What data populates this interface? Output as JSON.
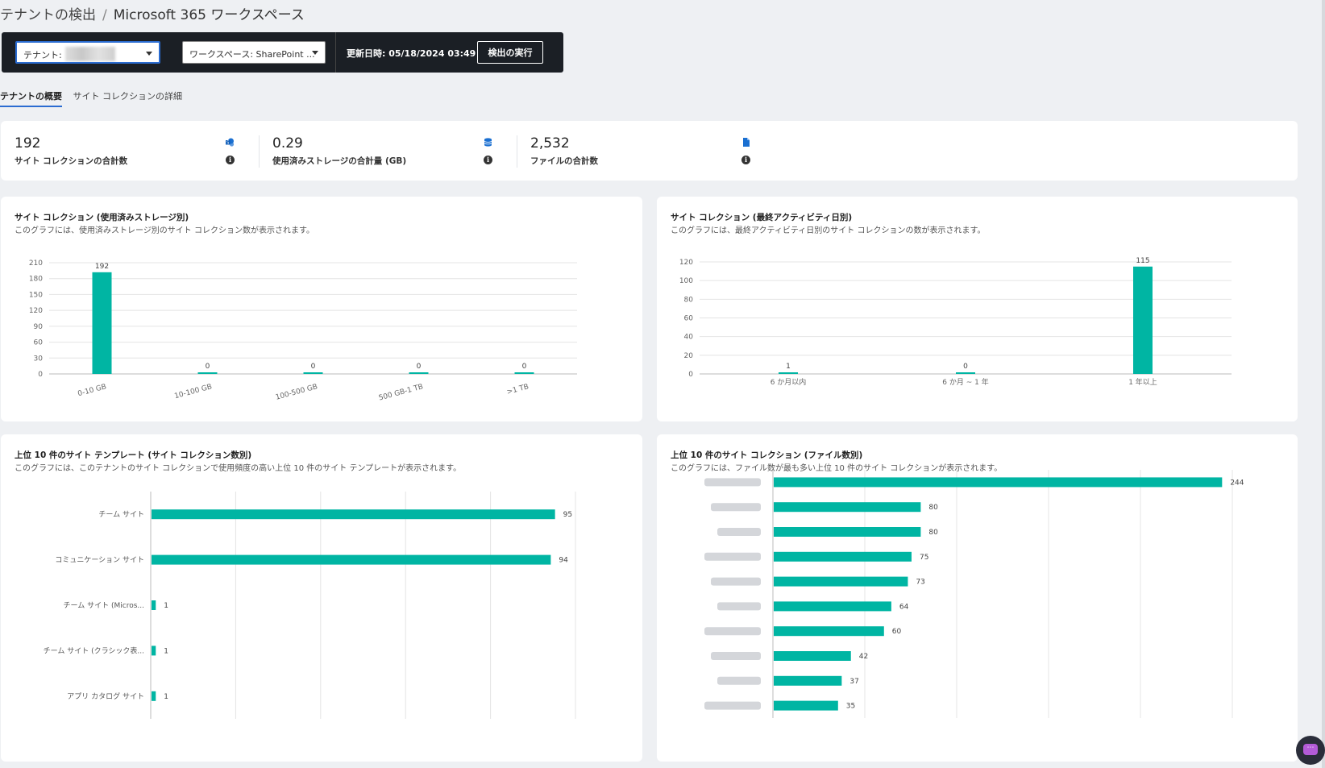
{
  "breadcrumb": {
    "parent": "テナントの検出",
    "separator": "/",
    "current": "Microsoft 365 ワークスペース"
  },
  "toolbar": {
    "tenant_label": "テナント:",
    "workspace_label": "ワークスペース: SharePoint ...",
    "updated": "更新日時: 05/18/2024 03:49",
    "run_button": "検出の実行"
  },
  "tabs": [
    {
      "label": "テナントの概要",
      "active": true
    },
    {
      "label": "サイト コレクションの詳細",
      "active": false
    }
  ],
  "summary": [
    {
      "value": "192",
      "label": "サイト コレクションの合計数",
      "icon": "sharepoint-icon"
    },
    {
      "value": "0.29",
      "label": "使用済みストレージの合計量 (GB)",
      "icon": "database-icon"
    },
    {
      "value": "2,532",
      "label": "ファイルの合計数",
      "icon": "file-icon"
    }
  ],
  "colors": {
    "bar": "#00b5a3",
    "accent": "#2b6cd1",
    "icon": "#1a6fd1"
  },
  "chart1": {
    "title": "サイト コレクション (使用済みストレージ別)",
    "subtitle": "このグラフには、使用済みストレージ別のサイト コレクション数が表示されます。"
  },
  "chart2": {
    "title": "サイト コレクション (最終アクティビティ日別)",
    "subtitle": "このグラフには、最終アクティビティ日別のサイト コレクションの数が表示されます。"
  },
  "chart3": {
    "title": "上位 10 件のサイト テンプレート (サイト コレクション数別)",
    "subtitle": "このグラフには、このテナントのサイト コレクションで使用頻度の高い上位 10 件のサイト テンプレートが表示されます。"
  },
  "chart4": {
    "title": "上位 10 件のサイト コレクション (ファイル数別)",
    "subtitle": "このグラフには、ファイル数が最も多い上位 10 件のサイト コレクションが表示されます。"
  },
  "chart_data": [
    {
      "type": "bar",
      "categories": [
        "0-10 GB",
        "10-100 GB",
        "100-500 GB",
        "500 GB-1 TB",
        ">1 TB"
      ],
      "values": [
        192,
        0,
        0,
        0,
        0
      ],
      "yticks": [
        0,
        30,
        60,
        90,
        120,
        150,
        180,
        210
      ],
      "ylim": [
        0,
        210
      ],
      "grid": true
    },
    {
      "type": "bar",
      "categories": [
        "6 か月以内",
        "6 か月 ~ 1 年",
        "1 年以上"
      ],
      "values": [
        1,
        0,
        115
      ],
      "yticks": [
        0,
        20,
        40,
        60,
        80,
        100,
        120
      ],
      "ylim": [
        0,
        120
      ],
      "grid": true
    },
    {
      "type": "bar",
      "orientation": "horizontal",
      "categories": [
        "チーム サイト",
        "コミュニケーション サイト",
        "チーム サイト (Micros...",
        "チーム サイト (クラシック表...",
        "アプリ カタログ サイト"
      ],
      "values": [
        95,
        94,
        1,
        1,
        1
      ],
      "xlim": [
        0,
        100
      ],
      "grid": true
    },
    {
      "type": "bar",
      "orientation": "horizontal",
      "categories": [
        "",
        "",
        "",
        "",
        "",
        "",
        "",
        "",
        "",
        ""
      ],
      "values": [
        244,
        80,
        80,
        75,
        73,
        64,
        60,
        42,
        37,
        35
      ],
      "xlim": [
        0,
        250
      ],
      "grid": true
    }
  ]
}
